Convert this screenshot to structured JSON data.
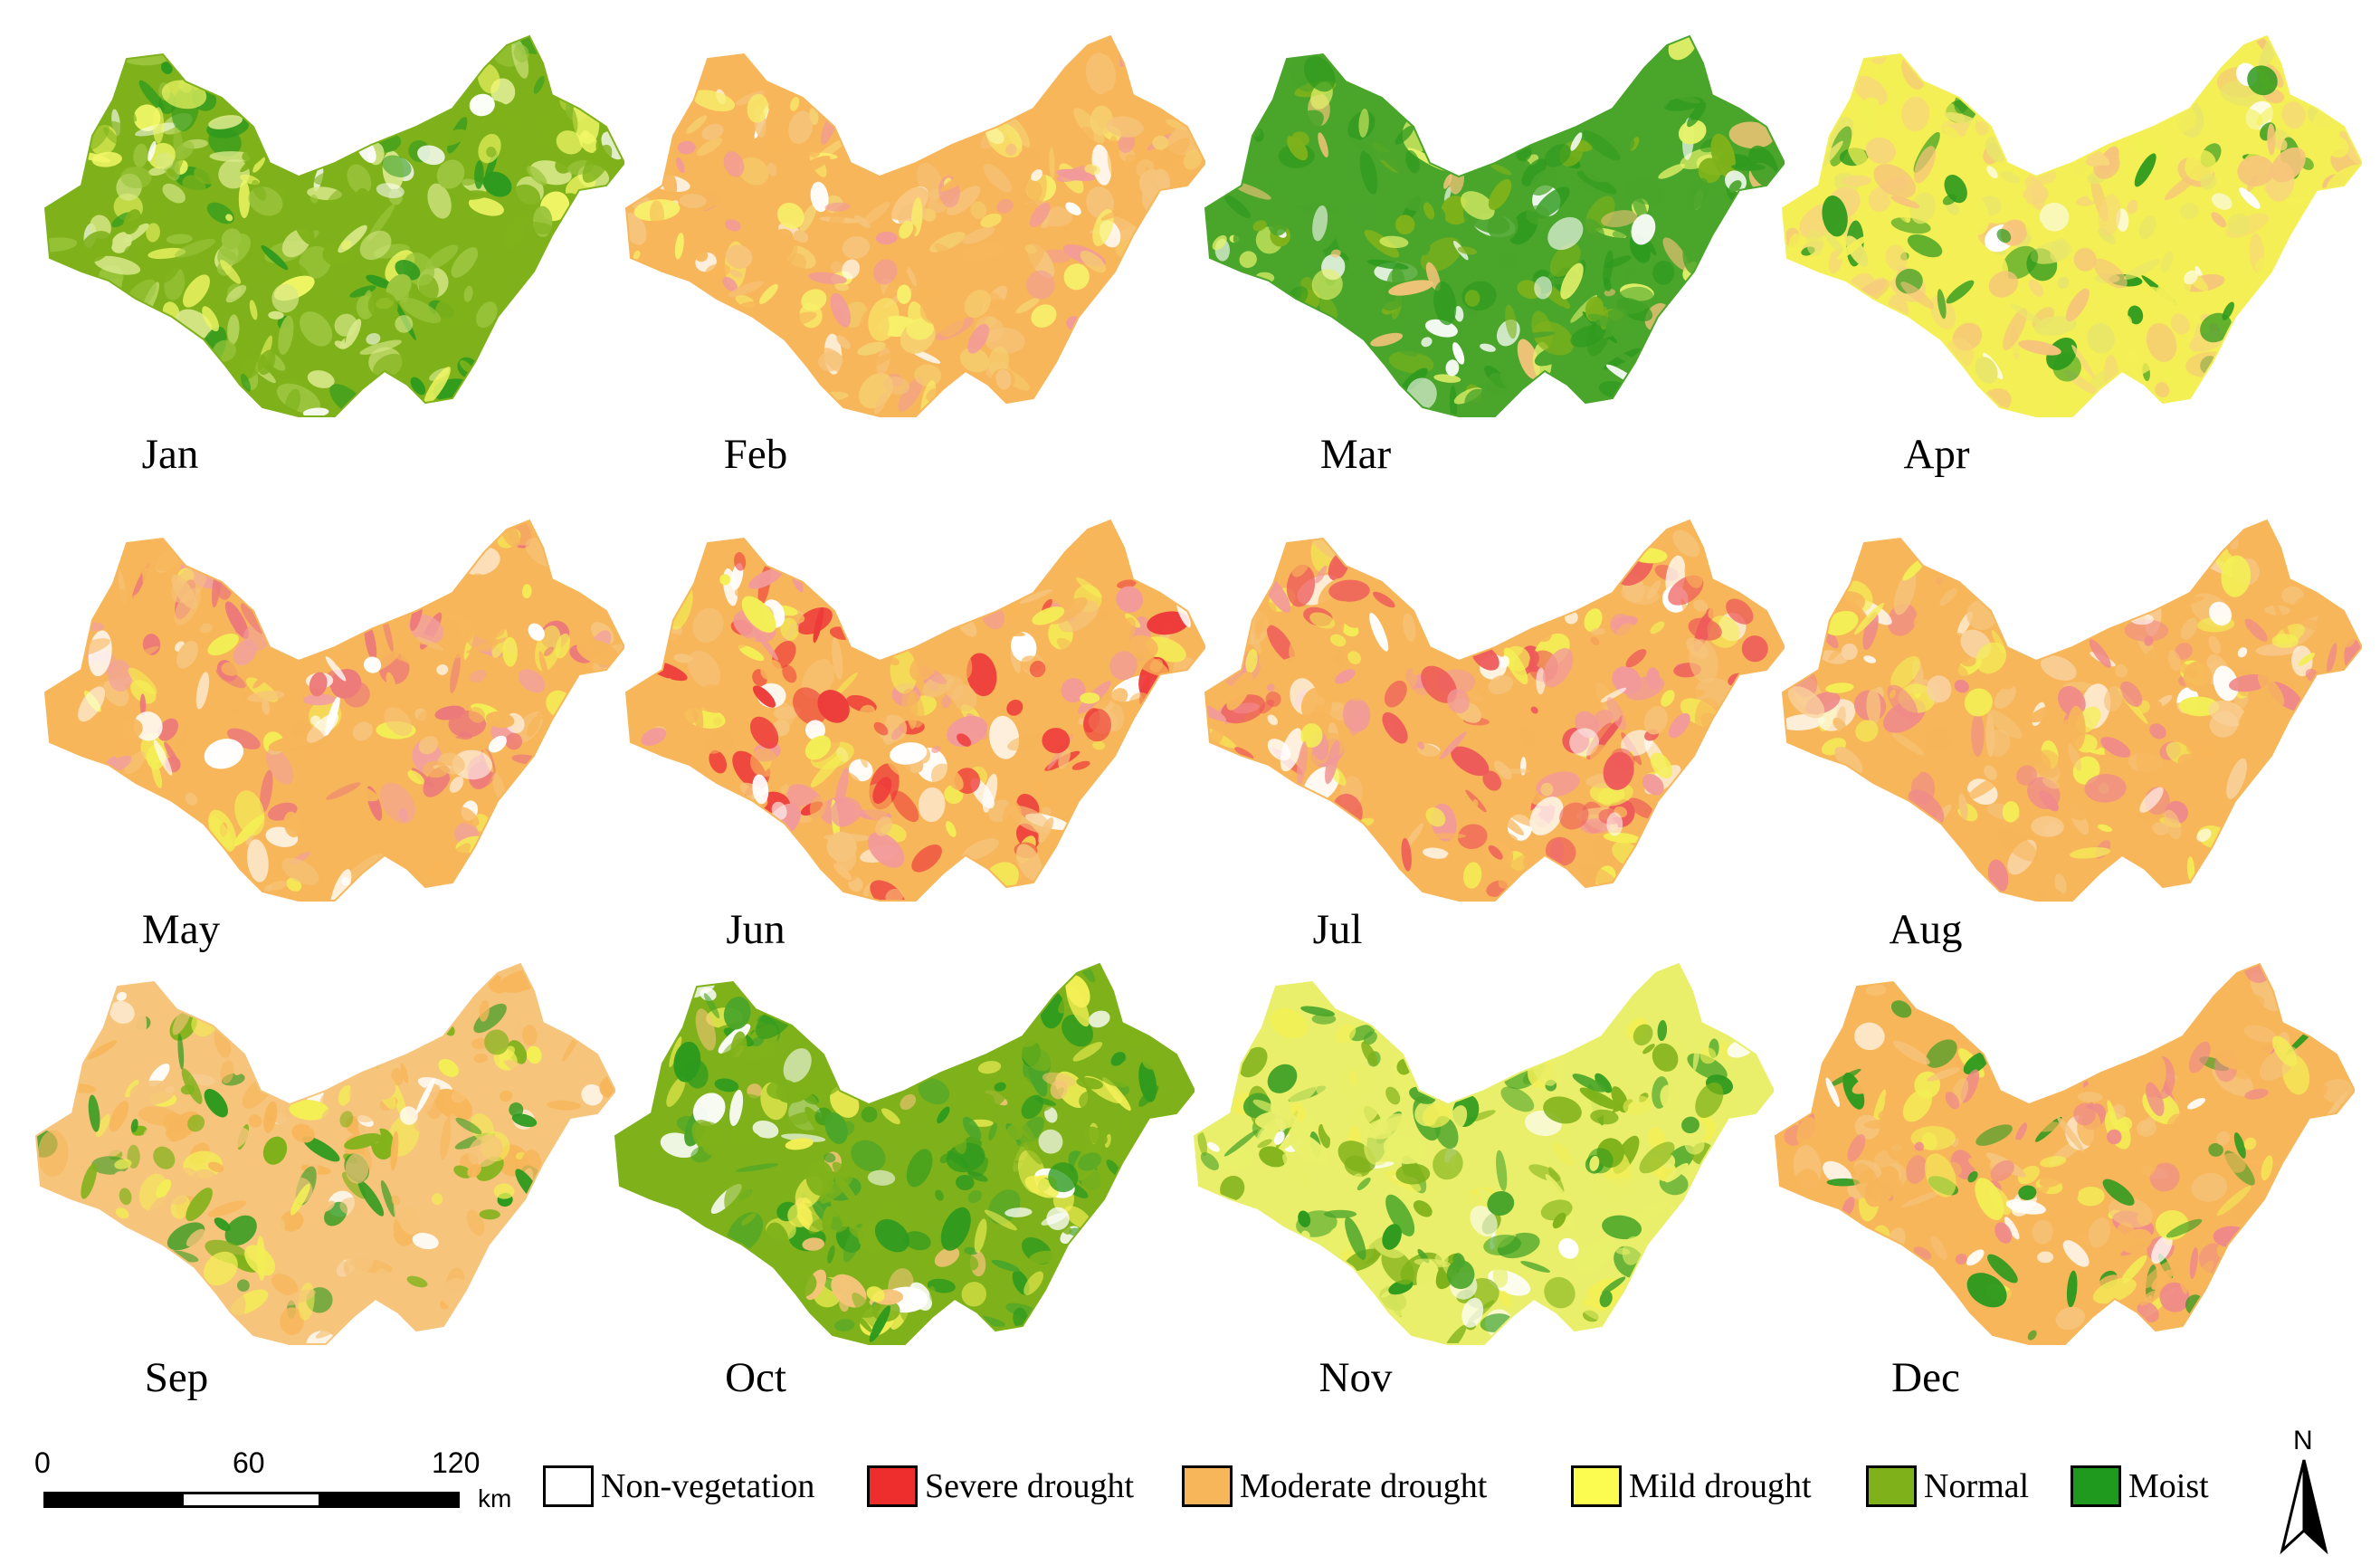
{
  "months": [
    {
      "label": "Jan",
      "dominant": "Normal",
      "palette": [
        "#7fb21a",
        "#9bc53d",
        "#d8e88a",
        "#f2f766",
        "#2e9a1e",
        "#ffffff"
      ]
    },
    {
      "label": "Feb",
      "dominant": "Moderate drought",
      "palette": [
        "#f7b65a",
        "#f6c47b",
        "#f5d070",
        "#f7f06a",
        "#f29a9a",
        "#ffffff"
      ]
    },
    {
      "label": "Mar",
      "dominant": "Normal",
      "palette": [
        "#4aa52b",
        "#2e9a1e",
        "#7fb21a",
        "#e6f26b",
        "#f6c47b",
        "#ffffff"
      ]
    },
    {
      "label": "Apr",
      "dominant": "Mild drought",
      "palette": [
        "#f3ef55",
        "#f7d77a",
        "#f6c47b",
        "#e9e56a",
        "#2e9a1e",
        "#ffffff"
      ]
    },
    {
      "label": "May",
      "dominant": "Moderate drought",
      "palette": [
        "#f7b65a",
        "#ec7a7a",
        "#f2a0a0",
        "#f6c47b",
        "#f3ef55",
        "#ffffff"
      ]
    },
    {
      "label": "Jun",
      "dominant": "Moderate drought",
      "palette": [
        "#f7b65a",
        "#ee3b3b",
        "#f6c47b",
        "#f3ef55",
        "#f29a9a",
        "#ffffff"
      ]
    },
    {
      "label": "Jul",
      "dominant": "Moderate drought",
      "palette": [
        "#f7b65a",
        "#ee5a5a",
        "#f29a9a",
        "#f6c47b",
        "#f3ef55",
        "#ffffff"
      ]
    },
    {
      "label": "Aug",
      "dominant": "Moderate drought",
      "palette": [
        "#f7b65a",
        "#f6c47b",
        "#ef8a8a",
        "#f3ef55",
        "#f9d2a0",
        "#ffffff"
      ]
    },
    {
      "label": "Sep",
      "dominant": "Moderate drought",
      "palette": [
        "#f6c47b",
        "#f7b65a",
        "#f3ef55",
        "#7fb21a",
        "#2e9a1e",
        "#ffffff"
      ]
    },
    {
      "label": "Oct",
      "dominant": "Normal",
      "palette": [
        "#7fb21a",
        "#4aa52b",
        "#2e9a1e",
        "#f3ef55",
        "#f6c47b",
        "#ffffff"
      ]
    },
    {
      "label": "Nov",
      "dominant": "Mild drought",
      "palette": [
        "#e9ef6a",
        "#7fb21a",
        "#4aa52b",
        "#f3ef55",
        "#2e9a1e",
        "#ffffff"
      ]
    },
    {
      "label": "Dec",
      "dominant": "Moderate drought",
      "palette": [
        "#f7b65a",
        "#f6c47b",
        "#ef8a8a",
        "#f3ef55",
        "#2e9a1e",
        "#ffffff"
      ]
    }
  ],
  "scale": {
    "ticks": [
      "0",
      "60",
      "120"
    ],
    "unit": "km"
  },
  "legend": [
    {
      "label": "Non-vegetation",
      "color": "#ffffff"
    },
    {
      "label": "Severe drought",
      "color": "#ee2d2d"
    },
    {
      "label": "Moderate drought",
      "color": "#f7b65a"
    },
    {
      "label": "Mild drought",
      "color": "#fbfb50"
    },
    {
      "label": "Normal",
      "color": "#7fb21a"
    },
    {
      "label": "Moist",
      "color": "#1f9a1f"
    }
  ],
  "north_arrow": {
    "label": "N"
  }
}
